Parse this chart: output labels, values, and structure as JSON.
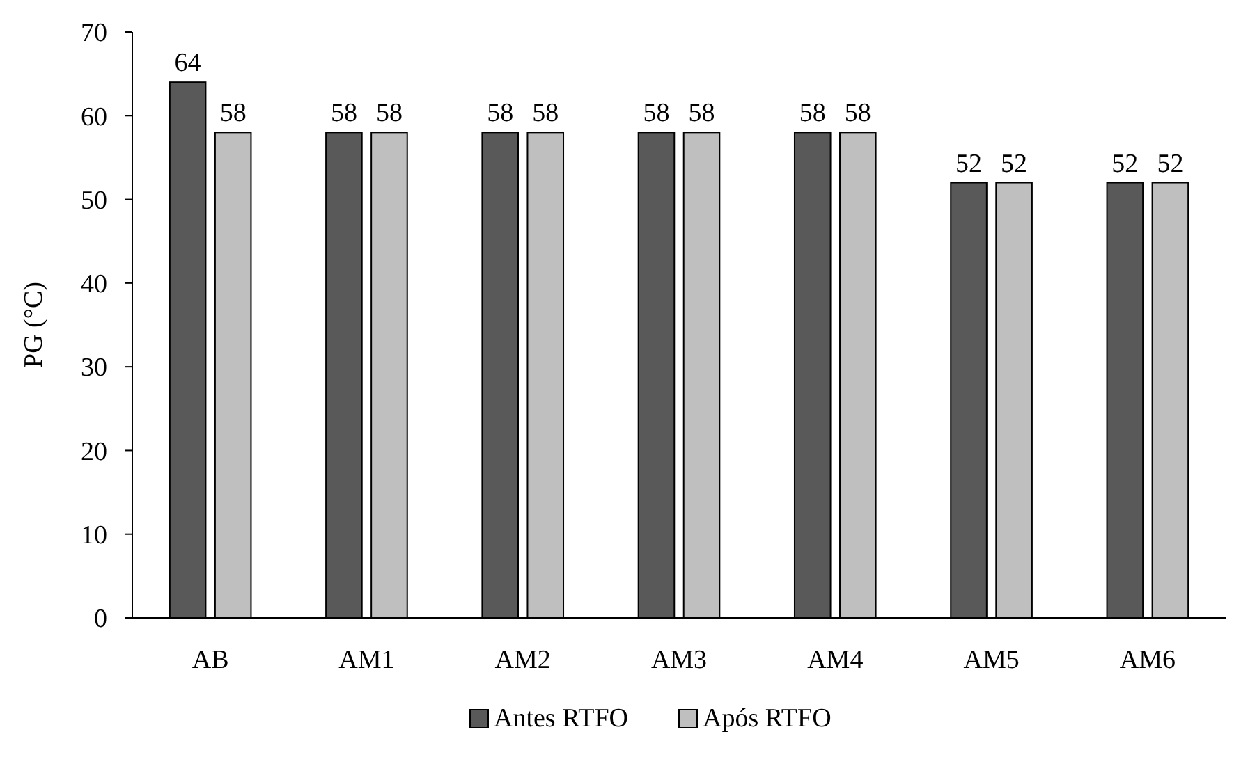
{
  "chart_data": {
    "type": "bar",
    "ylabel": "PG (°C)",
    "categories": [
      "AB",
      "AM1",
      "AM2",
      "AM3",
      "AM4",
      "AM5",
      "AM6"
    ],
    "series": [
      {
        "name": "Antes RTFO",
        "color": "#595959",
        "values": [
          64,
          58,
          58,
          58,
          58,
          52,
          52
        ]
      },
      {
        "name": "Após RTFO",
        "color": "#bfbfbf",
        "values": [
          58,
          58,
          58,
          58,
          58,
          52,
          52
        ]
      }
    ],
    "ylim": [
      0,
      70
    ],
    "yticks": [
      0,
      10,
      20,
      30,
      40,
      50,
      60,
      70
    ],
    "grid": false,
    "legend": "bottom",
    "data_labels": true
  }
}
